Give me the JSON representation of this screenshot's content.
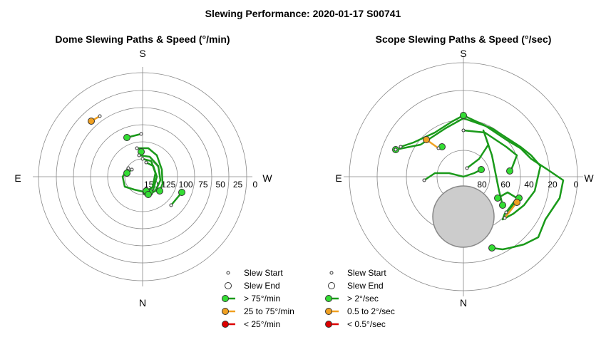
{
  "title": "Slewing Performance: 2020-01-17 S00741",
  "colors": {
    "fast": "#1a9a1a",
    "fast_fill": "#33dd33",
    "medium": "#f0a020",
    "medium_fill": "#f0a020",
    "slow": "#dd0000",
    "slow_fill": "#dd0000",
    "grid": "#888888",
    "sun_fill": "#cccccc",
    "sun_stroke": "#888888"
  },
  "chart_data": [
    {
      "type": "polar-path",
      "title": "Dome Slewing Paths & Speed (°/min)",
      "compass": {
        "top": "S",
        "bottom": "N",
        "left": "E",
        "right": "W"
      },
      "radial_ticks": [
        "150",
        "125",
        "100",
        "75",
        "50",
        "25",
        "0"
      ],
      "legend": [
        {
          "marker": "start",
          "label": "Slew Start"
        },
        {
          "marker": "end",
          "label": "Slew End"
        },
        {
          "marker": "fast",
          "label": "> 75°/min"
        },
        {
          "marker": "medium",
          "label": "25 to 75°/min"
        },
        {
          "marker": "slow",
          "label": "< 25°/min"
        }
      ],
      "paths": [
        {
          "speed": "fast",
          "points": [
            [
              -2,
              60
            ],
            [
              -22,
              55
            ]
          ]
        },
        {
          "speed": "fast",
          "points": [
            [
              -8,
              40
            ],
            [
              8,
              40
            ],
            [
              20,
              30
            ],
            [
              27,
              10
            ],
            [
              28,
              -10
            ],
            [
              24,
              -20
            ]
          ]
        },
        {
          "speed": "fast",
          "points": [
            [
              -20,
              12
            ],
            [
              -28,
              0
            ],
            [
              -25,
              -14
            ],
            [
              -12,
              -18
            ],
            [
              5,
              -22
            ]
          ]
        },
        {
          "speed": "fast",
          "points": [
            [
              5,
              20
            ],
            [
              15,
              15
            ],
            [
              20,
              0
            ],
            [
              15,
              -18
            ],
            [
              10,
              -22
            ]
          ]
        },
        {
          "speed": "fast",
          "points": [
            [
              0,
              25
            ],
            [
              12,
              22
            ],
            [
              18,
              5
            ],
            [
              14,
              -15
            ],
            [
              5,
              -20
            ]
          ]
        },
        {
          "speed": "fast",
          "points": [
            [
              -5,
              30
            ],
            [
              10,
              28
            ],
            [
              22,
              15
            ],
            [
              25,
              -5
            ],
            [
              18,
              -20
            ],
            [
              8,
              -25
            ]
          ]
        },
        {
          "speed": "fast",
          "points": [
            [
              -15,
              10
            ],
            [
              -22,
              5
            ]
          ]
        },
        {
          "speed": "fast",
          "points": [
            [
              40,
              -40
            ],
            [
              55,
              -22
            ]
          ]
        },
        {
          "speed": "medium",
          "points": [
            [
              -60,
              85
            ],
            [
              -72,
              78
            ]
          ]
        }
      ],
      "starts": [
        [
          -2,
          60
        ],
        [
          -8,
          40
        ],
        [
          -20,
          12
        ],
        [
          5,
          20
        ],
        [
          0,
          25
        ],
        [
          -5,
          30
        ],
        [
          -15,
          10
        ],
        [
          40,
          -40
        ],
        [
          -60,
          85
        ]
      ],
      "ends": [
        {
          "speed": "fast",
          "at": [
            -22,
            55
          ]
        },
        {
          "speed": "fast",
          "at": [
            24,
            -20
          ]
        },
        {
          "speed": "fast",
          "at": [
            5,
            -22
          ]
        },
        {
          "speed": "fast",
          "at": [
            10,
            -22
          ]
        },
        {
          "speed": "fast",
          "at": [
            5,
            -20
          ]
        },
        {
          "speed": "fast",
          "at": [
            8,
            -25
          ]
        },
        {
          "speed": "fast",
          "at": [
            -22,
            5
          ]
        },
        {
          "speed": "fast",
          "at": [
            55,
            -22
          ]
        },
        {
          "speed": "fast",
          "at": [
            -2,
            35
          ]
        },
        {
          "speed": "medium",
          "at": [
            -72,
            78
          ]
        }
      ]
    },
    {
      "type": "polar-path",
      "title": "Scope Slewing Paths & Speed (°/sec)",
      "compass": {
        "top": "S",
        "bottom": "N",
        "left": "E",
        "right": "W"
      },
      "radial_ticks": [
        "80",
        "60",
        "40",
        "20",
        "0"
      ],
      "legend": [
        {
          "marker": "start",
          "label": "Slew Start"
        },
        {
          "marker": "end",
          "label": "Slew End"
        },
        {
          "marker": "fast",
          "label": "> 2°/sec"
        },
        {
          "marker": "medium",
          "label": "0.5 to 2°/sec"
        },
        {
          "marker": "slow",
          "label": "< 0.5°/sec"
        }
      ],
      "sun": {
        "center": [
          0,
          -56
        ],
        "radius": 43
      },
      "paths": [
        {
          "speed": "fast",
          "points": [
            [
              -88,
              42
            ],
            [
              -70,
              48
            ],
            [
              -40,
              62
            ],
            [
              -15,
              78
            ],
            [
              0,
              86
            ],
            [
              30,
              72
            ],
            [
              60,
              52
            ],
            [
              80,
              40
            ],
            [
              95,
              25
            ],
            [
              118,
              10
            ],
            [
              140,
              -5
            ],
            [
              135,
              -30
            ],
            [
              115,
              -60
            ],
            [
              105,
              -85
            ],
            [
              85,
              -95
            ],
            [
              65,
              -100
            ],
            [
              55,
              -102
            ],
            [
              40,
              -100
            ]
          ]
        },
        {
          "speed": "fast",
          "points": [
            [
              -95,
              38
            ],
            [
              -60,
              45
            ],
            [
              -25,
              68
            ],
            [
              0,
              82
            ],
            [
              40,
              68
            ],
            [
              80,
              42
            ],
            [
              95,
              30
            ],
            [
              108,
              15
            ],
            [
              100,
              -20
            ],
            [
              85,
              -40
            ],
            [
              70,
              -52
            ],
            [
              55,
              -60
            ],
            [
              58,
              -52
            ],
            [
              70,
              -40
            ],
            [
              78,
              -30
            ]
          ]
        },
        {
          "speed": "fast",
          "points": [
            [
              0,
              65
            ],
            [
              30,
              62
            ],
            [
              60,
              42
            ],
            [
              75,
              30
            ],
            [
              68,
              12
            ],
            [
              65,
              8
            ]
          ]
        },
        {
          "speed": "fast",
          "points": [
            [
              5,
              12
            ],
            [
              22,
              25
            ],
            [
              35,
              45
            ],
            [
              28,
              65
            ],
            [
              40,
              30
            ],
            [
              45,
              5
            ],
            [
              50,
              -20
            ],
            [
              55,
              -40
            ]
          ]
        },
        {
          "speed": "fast",
          "points": [
            [
              -55,
              -5
            ],
            [
              -40,
              5
            ],
            [
              -20,
              5
            ],
            [
              0,
              0
            ],
            [
              15,
              5
            ],
            [
              25,
              10
            ]
          ]
        },
        {
          "speed": "fast",
          "points": [
            [
              60,
              -50
            ],
            [
              75,
              -30
            ],
            [
              62,
              -22
            ],
            [
              48,
              -30
            ]
          ]
        },
        {
          "speed": "medium",
          "points": [
            [
              -35,
              40
            ],
            [
              -52,
              52
            ]
          ]
        },
        {
          "speed": "medium",
          "points": [
            [
              58,
              -58
            ],
            [
              75,
              -36
            ]
          ]
        }
      ],
      "starts": [
        [
          -88,
          42
        ],
        [
          -95,
          38
        ],
        [
          0,
          65
        ],
        [
          5,
          12
        ],
        [
          -55,
          -5
        ],
        [
          60,
          -50
        ],
        [
          -35,
          40
        ],
        [
          58,
          -58
        ]
      ],
      "ends": [
        {
          "speed": "fast",
          "at": [
            40,
            -100
          ]
        },
        {
          "speed": "fast",
          "at": [
            78,
            -30
          ]
        },
        {
          "speed": "fast",
          "at": [
            65,
            8
          ]
        },
        {
          "speed": "fast",
          "at": [
            55,
            -40
          ]
        },
        {
          "speed": "fast",
          "at": [
            25,
            10
          ]
        },
        {
          "speed": "fast",
          "at": [
            48,
            -30
          ]
        },
        {
          "speed": "fast",
          "at": [
            -95,
            38
          ]
        },
        {
          "speed": "fast",
          "at": [
            0,
            86
          ]
        },
        {
          "speed": "fast",
          "at": [
            -30,
            42
          ]
        },
        {
          "speed": "medium",
          "at": [
            -52,
            52
          ]
        },
        {
          "speed": "medium",
          "at": [
            75,
            -36
          ]
        }
      ]
    }
  ]
}
